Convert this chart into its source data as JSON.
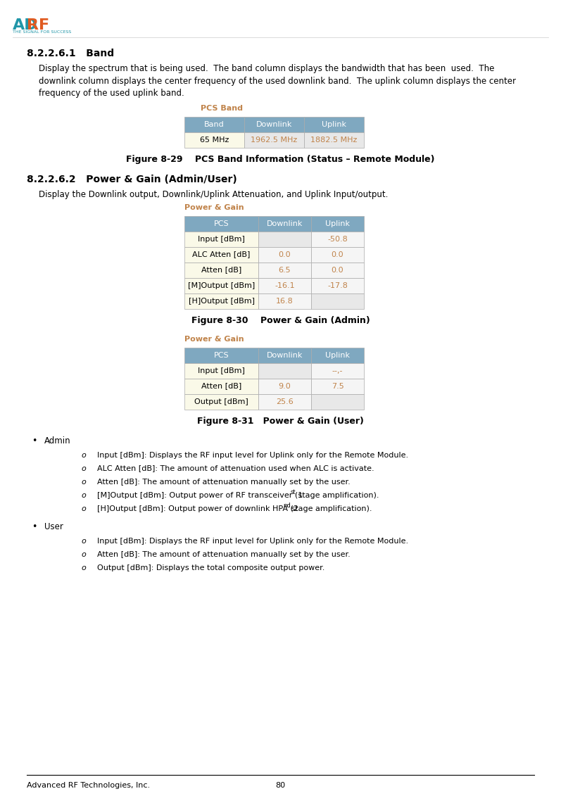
{
  "page_width": 7.97,
  "page_height": 11.31,
  "background": "#ffffff",
  "logo_text": "ADRF",
  "logo_subtitle": "THE SIGNAL FOR SUCCESS",
  "section_title": "8.2.2.6.1   Band",
  "section_body": "Display the spectrum that is being used.  The band column displays the bandwidth that has been  used.  The\ndownlink column displays the center frequency of the used downlink band.  The uplink column displays the center\nfrequency of the used uplink band.",
  "pcs_band_title": "PCS Band",
  "pcs_band_header": [
    "Band",
    "Downlink",
    "Uplink"
  ],
  "pcs_band_data": [
    [
      "65 MHz",
      "1962.5 MHz",
      "1882.5 MHz"
    ]
  ],
  "fig829_caption": "Figure 8-29    PCS Band Information (Status – Remote Module)",
  "section2_title": "8.2.2.6.2   Power & Gain (Admin/User)",
  "section2_body": "Display the Downlink output, Downlink/Uplink Attenuation, and Uplink Input/output.",
  "power_gain_title": "Power & Gain",
  "admin_header": [
    "PCS",
    "Downlink",
    "Uplink"
  ],
  "admin_rows": [
    [
      "Input [dBm]",
      "",
      "-50.8"
    ],
    [
      "ALC Atten [dB]",
      "0.0",
      "0.0"
    ],
    [
      "Atten [dB]",
      "6.5",
      "0.0"
    ],
    [
      "[M]Output [dBm]",
      "-16.1",
      "-17.8"
    ],
    [
      "[H]Output [dBm]",
      "16.8",
      ""
    ]
  ],
  "fig830_caption": "Figure 8-30    Power & Gain (Admin)",
  "user_header": [
    "PCS",
    "Downlink",
    "Uplink"
  ],
  "user_rows": [
    [
      "Input [dBm]",
      "",
      "--,-"
    ],
    [
      "Atten [dB]",
      "9.0",
      "7.5"
    ],
    [
      "Output [dBm]",
      "25.6",
      ""
    ]
  ],
  "fig831_caption": "Figure 8-31   Power & Gain (User)",
  "bullet_admin_title": "Admin",
  "bullet_admin_items": [
    "Input [dBm]: Displays the RF input level for Uplink only for the Remote Module.",
    "ALC Atten [dB]: The amount of attenuation used when ALC is activate.",
    "Atten [dB]: The amount of attenuation manually set by the user.",
    "[M]Output [dBm]: Output power of RF transceiver (1st stage amplification).",
    "[H]Output [dBm]: Output power of downlink HPA (2nd stage amplification)."
  ],
  "bullet_user_title": "User",
  "bullet_user_items": [
    "Input [dBm]: Displays the RF input level for Uplink only for the Remote Module.",
    "Atten [dB]: The amount of attenuation manually set by the user.",
    "Output [dBm]: Displays the total composite output power."
  ],
  "footer_left": "Advanced RF Technologies, Inc.",
  "footer_center": "80",
  "header_color": "#7fa8c0",
  "header_text_color": "#ffffff",
  "row_odd_color": "#f5f5f0",
  "row_even_color": "#e8e8e8",
  "pcs_row_color": "#faf9e8",
  "data_text_color": "#c0834a",
  "section_title_color": "#000000",
  "table_title_color": "#c0834a",
  "body_text_color": "#000000",
  "border_color": "#aaaaaa"
}
